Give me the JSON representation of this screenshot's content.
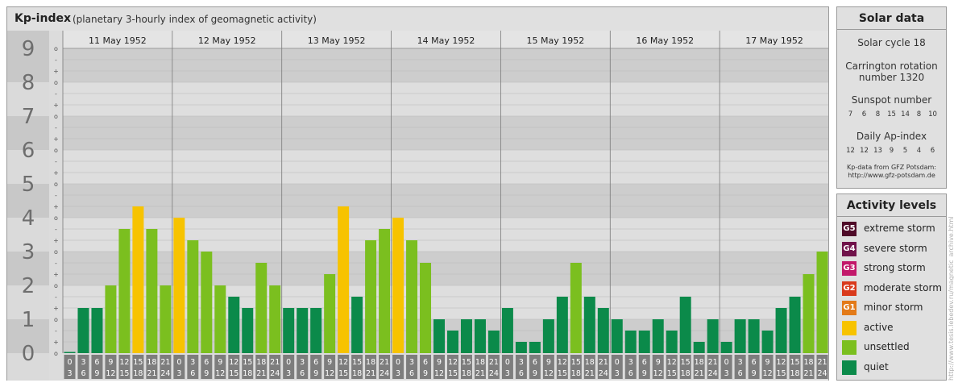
{
  "header": {
    "title": "Kp-index",
    "subtitle": "(planetary 3-hourly index of geomagnetic activity)"
  },
  "chart_data": {
    "type": "bar",
    "title": "Kp-index",
    "subtitle": "(planetary 3-hourly index of geomagnetic activity)",
    "ylim": [
      0,
      9
    ],
    "y_ticks": [
      "0",
      "1",
      "2",
      "3",
      "4",
      "5",
      "6",
      "7",
      "8",
      "9"
    ],
    "y_minor_labels": [
      "+",
      "o",
      "-"
    ],
    "days": [
      "11 May 1952",
      "12 May 1952",
      "13 May 1952",
      "14 May 1952",
      "15 May 1952",
      "16 May 1952",
      "17 May 1952"
    ],
    "interval_labels": [
      [
        "0",
        "3"
      ],
      [
        "3",
        "6"
      ],
      [
        "6",
        "9"
      ],
      [
        "9",
        "12"
      ],
      [
        "12",
        "15"
      ],
      [
        "15",
        "18"
      ],
      [
        "18",
        "21"
      ],
      [
        "21",
        "24"
      ]
    ],
    "values": [
      [
        0,
        1.333,
        1.333,
        2,
        3.667,
        4.333,
        3.667,
        2
      ],
      [
        4,
        3.333,
        3,
        2,
        1.667,
        1.333,
        2.667,
        2
      ],
      [
        1.333,
        1.333,
        1.333,
        2.333,
        4.333,
        1.667,
        3.333,
        3.667
      ],
      [
        4,
        3.333,
        2.667,
        1,
        0.667,
        1,
        1,
        0.667
      ],
      [
        1.333,
        0.333,
        0.333,
        1,
        1.667,
        2.667,
        1.667,
        1.333
      ],
      [
        1,
        0.667,
        0.667,
        1,
        0.667,
        1.667,
        0.333,
        1
      ],
      [
        0.333,
        1,
        1,
        0.667,
        1.333,
        1.667,
        2.333,
        3
      ]
    ],
    "grid": true
  },
  "solar": {
    "header": "Solar data",
    "cycle": "Solar cycle 18",
    "carrington_line1": "Carrington rotation",
    "carrington_line2": "number 1320",
    "sunspot_label": "Sunspot number",
    "sunspot_values": [
      "7",
      "6",
      "8",
      "15",
      "14",
      "8",
      "10"
    ],
    "ap_label": "Daily Ap-index",
    "ap_values": [
      "12",
      "12",
      "13",
      "9",
      "5",
      "4",
      "6"
    ],
    "credit_line1": "Kp-data from GFZ Potsdam:",
    "credit_line2": "http://www.gfz-potsdam.de"
  },
  "activity": {
    "header": "Activity levels",
    "levels": [
      {
        "badge": "G5",
        "label": "extreme storm",
        "color": "#4f0a28"
      },
      {
        "badge": "G4",
        "label": "severe storm",
        "color": "#70124a"
      },
      {
        "badge": "G3",
        "label": "strong storm",
        "color": "#c2186a"
      },
      {
        "badge": "G2",
        "label": "moderate storm",
        "color": "#d93a1c"
      },
      {
        "badge": "G1",
        "label": "minor storm",
        "color": "#e37a18"
      },
      {
        "badge": "",
        "label": "active",
        "color": "#f7c300"
      },
      {
        "badge": "",
        "label": "unsettled",
        "color": "#7bbf1f"
      },
      {
        "badge": "",
        "label": "quiet",
        "color": "#0b8a4a"
      }
    ]
  },
  "colors": {
    "quiet": "#0b8a4a",
    "unsettled": "#7bbf1f",
    "active": "#f7c300",
    "band_dark": "#cdcdcd",
    "band_light": "#dedede"
  },
  "watermark": "http://www.tesis.lebedev.ru/magnetic_archive.html"
}
